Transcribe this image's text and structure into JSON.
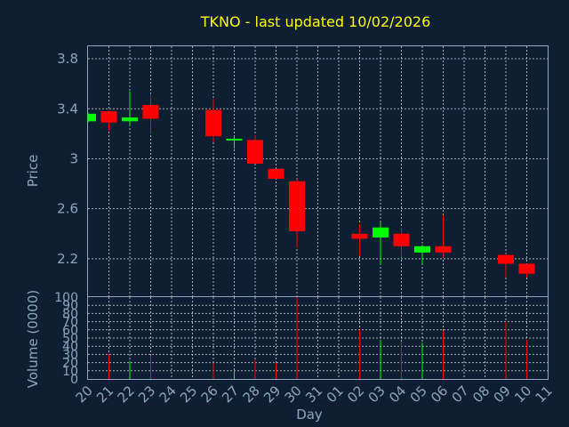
{
  "chart_data": {
    "type": "candlestick",
    "title": "TKNO - last updated 10/02/2026",
    "xlabel": "Day",
    "ylabel_price": "Price",
    "ylabel_volume": "Volume (0000)",
    "price_ticks": [
      "2.2",
      "2.6",
      "3",
      "3.4",
      "3.8"
    ],
    "volume_ticks": [
      "0",
      "10",
      "20",
      "30",
      "40",
      "50",
      "60",
      "70",
      "80",
      "90",
      "100"
    ],
    "price_ylim": [
      1.9,
      3.9
    ],
    "volume_ylim": [
      0,
      100
    ],
    "grid": true,
    "colors": {
      "up": "#00ff00",
      "down": "#ff0000",
      "title": "#ffff00",
      "axis": "#8aa6c0",
      "background": "#0f1f33"
    },
    "x_labels": [
      "20",
      "21",
      "22",
      "23",
      "24",
      "25",
      "26",
      "27",
      "28",
      "29",
      "30",
      "31",
      "01",
      "02",
      "03",
      "04",
      "05",
      "06",
      "07",
      "08",
      "09",
      "10",
      "11"
    ],
    "candles": [
      {
        "day": "20",
        "open": 3.3,
        "high": 3.37,
        "low": 3.29,
        "close": 3.36,
        "volume": 0
      },
      {
        "day": "21",
        "open": 3.38,
        "high": 3.39,
        "low": 3.23,
        "close": 3.29,
        "volume": 30
      },
      {
        "day": "22",
        "open": 3.3,
        "high": 3.54,
        "low": 3.26,
        "close": 3.33,
        "volume": 22
      },
      {
        "day": "23",
        "open": 3.43,
        "high": 3.52,
        "low": 3.2,
        "close": 3.32,
        "volume": 29
      },
      {
        "day": "26",
        "open": 3.39,
        "high": 3.48,
        "low": 3.13,
        "close": 3.18,
        "volume": 20
      },
      {
        "day": "27",
        "open": 3.16,
        "high": 3.18,
        "low": 3.08,
        "close": 3.16,
        "volume": 10
      },
      {
        "day": "28",
        "open": 3.15,
        "high": 3.19,
        "low": 2.96,
        "close": 2.96,
        "volume": 24
      },
      {
        "day": "29",
        "open": 2.92,
        "high": 2.92,
        "low": 2.84,
        "close": 2.84,
        "volume": 20
      },
      {
        "day": "30",
        "open": 2.82,
        "high": 2.84,
        "low": 2.29,
        "close": 2.42,
        "volume": 100
      },
      {
        "day": "02",
        "open": 2.4,
        "high": 2.48,
        "low": 2.22,
        "close": 2.36,
        "volume": 60
      },
      {
        "day": "03",
        "open": 2.37,
        "high": 2.49,
        "low": 2.15,
        "close": 2.45,
        "volume": 48
      },
      {
        "day": "04",
        "open": 2.4,
        "high": 2.45,
        "low": 2.21,
        "close": 2.3,
        "volume": 45
      },
      {
        "day": "05",
        "open": 2.25,
        "high": 2.31,
        "low": 2.15,
        "close": 2.3,
        "volume": 44
      },
      {
        "day": "06",
        "open": 2.3,
        "high": 2.55,
        "low": 2.21,
        "close": 2.25,
        "volume": 59
      },
      {
        "day": "09",
        "open": 2.23,
        "high": 2.24,
        "low": 2.05,
        "close": 2.16,
        "volume": 70
      },
      {
        "day": "10",
        "open": 2.16,
        "high": 2.16,
        "low": 2.05,
        "close": 2.08,
        "volume": 48
      }
    ]
  }
}
